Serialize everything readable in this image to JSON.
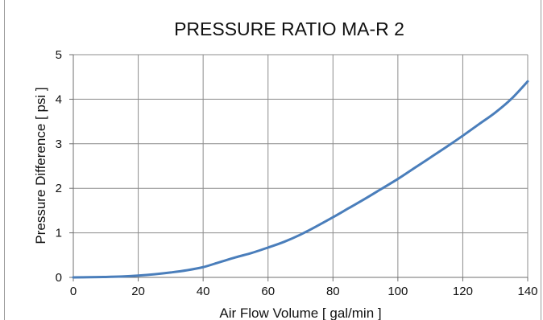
{
  "chart_data": {
    "type": "line",
    "title": "PRESSURE RATIO MA-R 2",
    "xlabel": "Air Flow Volume [ gal/min ]",
    "ylabel": "Pressure Difference [ psi ]",
    "xlim": [
      0,
      140
    ],
    "ylim": [
      0,
      5
    ],
    "x_ticks": [
      0,
      20,
      40,
      60,
      80,
      100,
      120,
      140
    ],
    "y_ticks": [
      0,
      1,
      2,
      3,
      4,
      5
    ],
    "grid": true,
    "legend": "none",
    "line_color": "#4a7ebb",
    "series": [
      {
        "x": [
          0,
          5,
          10,
          15,
          20,
          25,
          30,
          35,
          40,
          45,
          50,
          55,
          60,
          65,
          70,
          75,
          80,
          85,
          90,
          95,
          100,
          105,
          110,
          115,
          120,
          125,
          130,
          135,
          140
        ],
        "values": [
          0.0,
          0.005,
          0.01,
          0.02,
          0.04,
          0.07,
          0.11,
          0.16,
          0.23,
          0.34,
          0.45,
          0.55,
          0.67,
          0.8,
          0.96,
          1.15,
          1.35,
          1.56,
          1.77,
          1.99,
          2.21,
          2.45,
          2.69,
          2.93,
          3.18,
          3.44,
          3.7,
          4.01,
          4.4
        ]
      }
    ]
  }
}
